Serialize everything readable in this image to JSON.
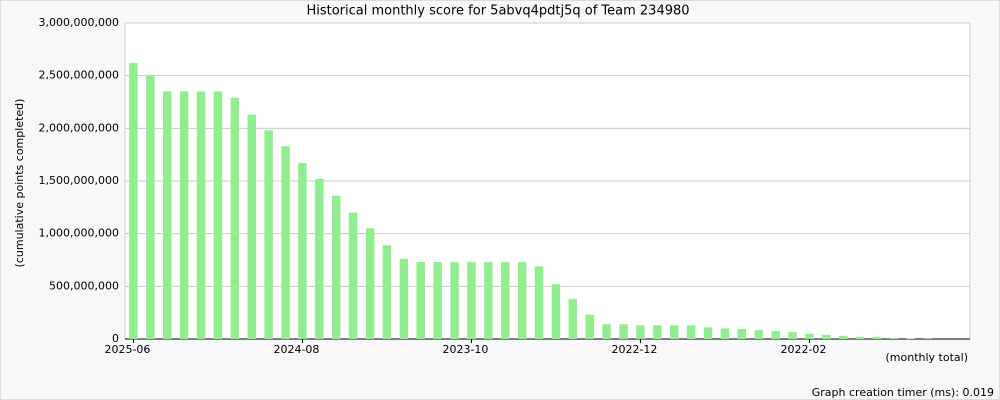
{
  "chart_data": {
    "type": "bar",
    "title": "Historical monthly score for 5abvq4pdtj5q of Team 234980",
    "y_label": "(cumulative points completed)",
    "x_label": "(monthly total)",
    "footer": "Graph creation timer (ms): 0.019",
    "color": "#90ee90",
    "grid": true,
    "categories": [
      "2025-06",
      null,
      null,
      null,
      null,
      null,
      null,
      null,
      null,
      null,
      "2024-08",
      null,
      null,
      null,
      null,
      null,
      null,
      null,
      null,
      null,
      "2023-10",
      null,
      null,
      null,
      null,
      null,
      null,
      null,
      null,
      null,
      "2022-12",
      null,
      null,
      null,
      null,
      null,
      null,
      null,
      null,
      null,
      "2022-02",
      null,
      null,
      null,
      null,
      null,
      null,
      null
    ],
    "values": [
      2620000000,
      2500000000,
      2350000000,
      2350000000,
      2350000000,
      2350000000,
      2290000000,
      2130000000,
      1980000000,
      1830000000,
      1670000000,
      1520000000,
      1360000000,
      1200000000,
      1050000000,
      890000000,
      760000000,
      730000000,
      730000000,
      730000000,
      730000000,
      730000000,
      730000000,
      730000000,
      690000000,
      520000000,
      380000000,
      230000000,
      140000000,
      140000000,
      130000000,
      130000000,
      130000000,
      130000000,
      110000000,
      100000000,
      95000000,
      85000000,
      75000000,
      65000000,
      50000000,
      40000000,
      30000000,
      20000000,
      20000000,
      10000000,
      5000000,
      3000000
    ],
    "ylim": [
      0,
      3000000000
    ],
    "yticks": [
      0,
      {
        "value": 500000000,
        "label": "500,000,000"
      },
      {
        "value": 1000000000,
        "label": "1,000,000,000"
      },
      {
        "value": 1500000000,
        "label": "1,500,000,000"
      },
      {
        "value": 2000000000,
        "label": "2,000,000,000"
      },
      {
        "value": 2500000000,
        "label": "2,500,000,000"
      },
      {
        "value": 3000000000,
        "label": "3,000,000,000"
      }
    ]
  }
}
